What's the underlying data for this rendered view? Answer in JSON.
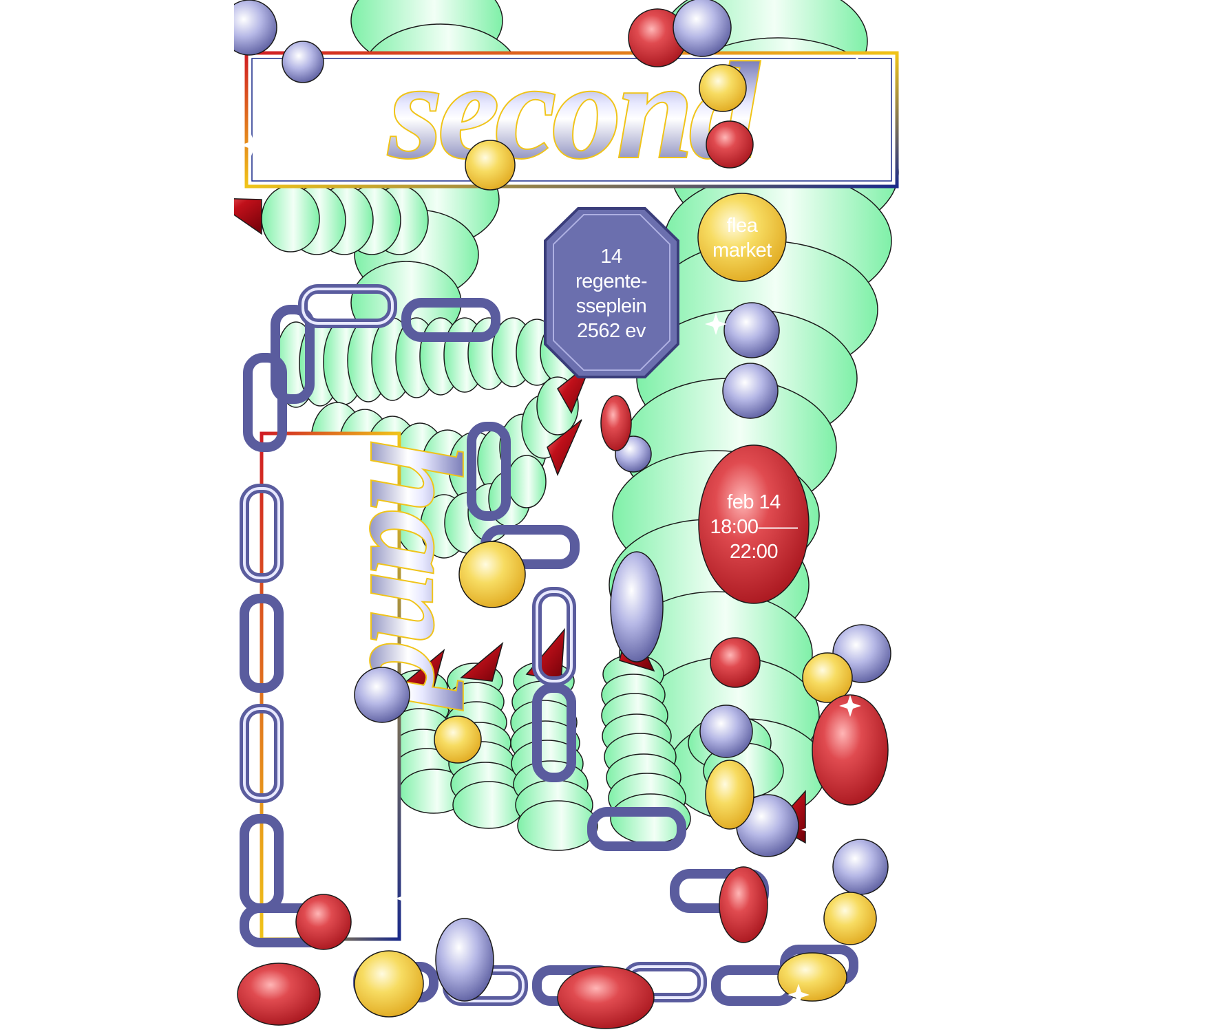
{
  "poster": {
    "title_top": "second",
    "title_side": "hand",
    "venue": {
      "lines": [
        "14",
        "regente-",
        "sseplein",
        "2562 ev"
      ]
    },
    "event": {
      "lines": [
        "flea",
        "market"
      ]
    },
    "date": {
      "lines": [
        "feb 14",
        "18:00——",
        "22:00"
      ]
    }
  },
  "colors": {
    "mint": "#7ff0a8",
    "mint_light": "#e9fff1",
    "nail_red": "#c0101a",
    "chain_purple": "#5a5c9e",
    "bead_red": "#d63a40",
    "bead_yellow": "#f5d24a",
    "bead_purple": "#6b6fae",
    "frame_red": "#d01c24",
    "frame_blue": "#1a2a8a",
    "frame_gold": "#f0c419"
  }
}
